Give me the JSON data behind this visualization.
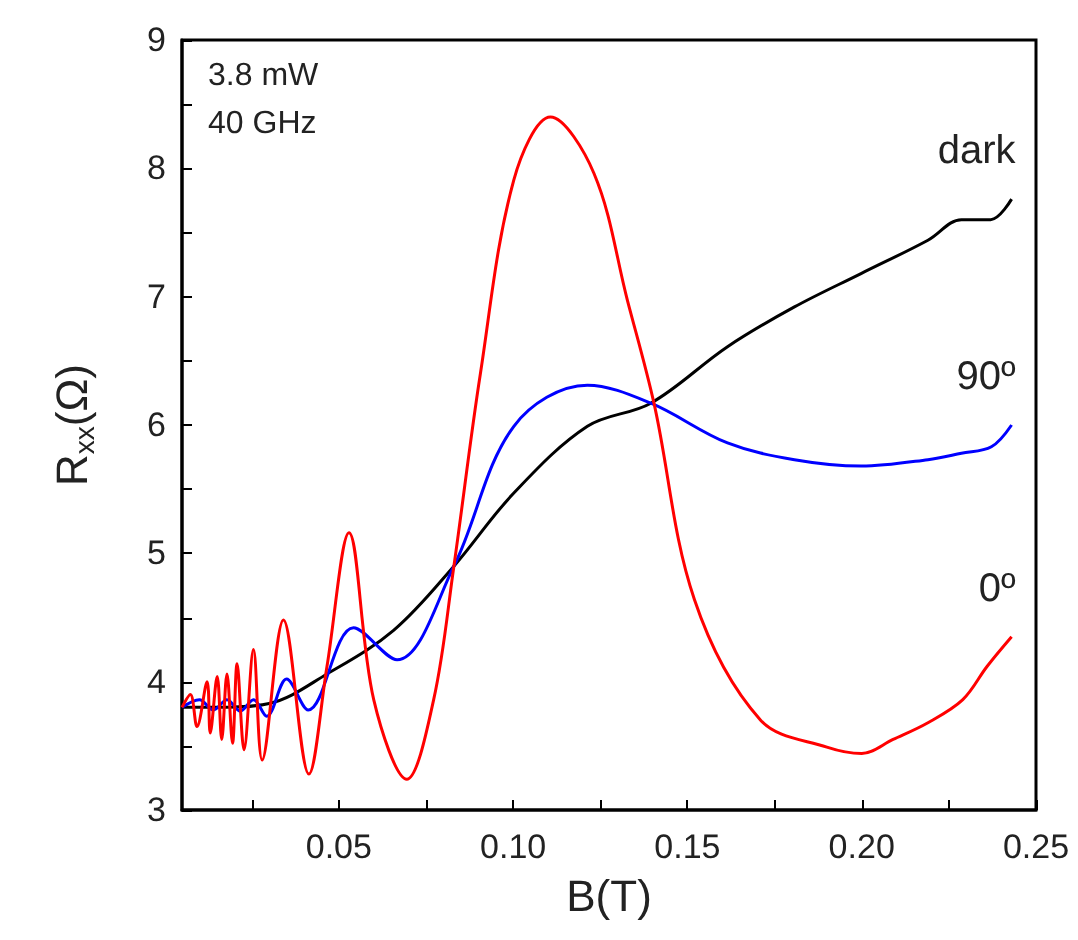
{
  "chart_data": {
    "type": "line",
    "xlabel": "B(T)",
    "ylabel": "R$_{xx}$(Ω)",
    "annotations": [
      "3.8 mW",
      "40 GHz"
    ],
    "xlim": [
      0.005,
      0.25
    ],
    "ylim": [
      3,
      9
    ],
    "xticks": [
      {
        "value": 0.025,
        "label": null
      },
      {
        "value": 0.05,
        "label": "0.05"
      },
      {
        "value": 0.075,
        "label": null
      },
      {
        "value": 0.1,
        "label": "0.10"
      },
      {
        "value": 0.125,
        "label": null
      },
      {
        "value": 0.15,
        "label": "0.15"
      },
      {
        "value": 0.175,
        "label": null
      },
      {
        "value": 0.2,
        "label": "0.20"
      },
      {
        "value": 0.225,
        "label": null
      },
      {
        "value": 0.25,
        "label": "0.25"
      }
    ],
    "yticks": [
      3,
      {
        "value": 3.5,
        "label": null
      },
      4,
      {
        "value": 4.5,
        "label": null
      },
      5,
      {
        "value": 5.5,
        "label": null
      },
      6,
      {
        "value": 6.5,
        "label": null
      },
      7,
      {
        "value": 7.5,
        "label": null
      },
      8,
      {
        "value": 8.5,
        "label": null
      },
      9
    ],
    "grid": false,
    "legend": false,
    "marker": "none",
    "line_style": "solid",
    "series": [
      {
        "name": "dark",
        "color": "#000000",
        "x": [
          0.005,
          0.015,
          0.03,
          0.0466,
          0.0657,
          0.083,
          0.1002,
          0.1213,
          0.1395,
          0.1615,
          0.1807,
          0.1998,
          0.219,
          0.2286,
          0.237,
          0.243
        ],
        "values": [
          3.8,
          3.8,
          3.83,
          4.06,
          4.4,
          4.9,
          5.47,
          5.99,
          6.17,
          6.61,
          6.92,
          7.18,
          7.44,
          7.6,
          7.6,
          7.76
        ]
      },
      {
        "name": "90º",
        "color": "#0000ff",
        "x": [
          0.005,
          0.01,
          0.014,
          0.0179,
          0.0217,
          0.0255,
          0.0293,
          0.035,
          0.0412,
          0.0542,
          0.0667,
          0.083,
          0.1002,
          0.1213,
          0.1395,
          0.1615,
          0.1807,
          0.1998,
          0.219,
          0.2286,
          0.2372,
          0.243
        ],
        "values": [
          3.8,
          3.86,
          3.78,
          3.86,
          3.77,
          3.86,
          3.73,
          4.02,
          3.78,
          4.42,
          4.17,
          4.9,
          5.99,
          6.31,
          6.17,
          5.86,
          5.73,
          5.68,
          5.73,
          5.78,
          5.83,
          6.0
        ]
      },
      {
        "name": "0º",
        "color": "#ff0000",
        "x": [
          0.005,
          0.0074,
          0.0093,
          0.0122,
          0.0131,
          0.0151,
          0.0164,
          0.0179,
          0.0195,
          0.0208,
          0.0228,
          0.0255,
          0.028,
          0.0341,
          0.0414,
          0.0466,
          0.0529,
          0.06,
          0.0695,
          0.0772,
          0.083,
          0.0906,
          0.1002,
          0.1107,
          0.1232,
          0.1328,
          0.1404,
          0.152,
          0.171,
          0.19,
          0.2,
          0.209,
          0.219,
          0.229,
          0.236,
          0.243
        ],
        "values": [
          3.8,
          3.9,
          3.65,
          4.0,
          3.6,
          4.04,
          3.55,
          4.06,
          3.52,
          4.14,
          3.47,
          4.25,
          3.39,
          4.48,
          3.28,
          4.12,
          5.16,
          3.86,
          3.24,
          3.86,
          4.9,
          6.4,
          7.91,
          8.4,
          7.96,
          6.97,
          6.17,
          4.64,
          3.7,
          3.49,
          3.44,
          3.55,
          3.68,
          3.86,
          4.12,
          4.35
        ]
      }
    ]
  }
}
